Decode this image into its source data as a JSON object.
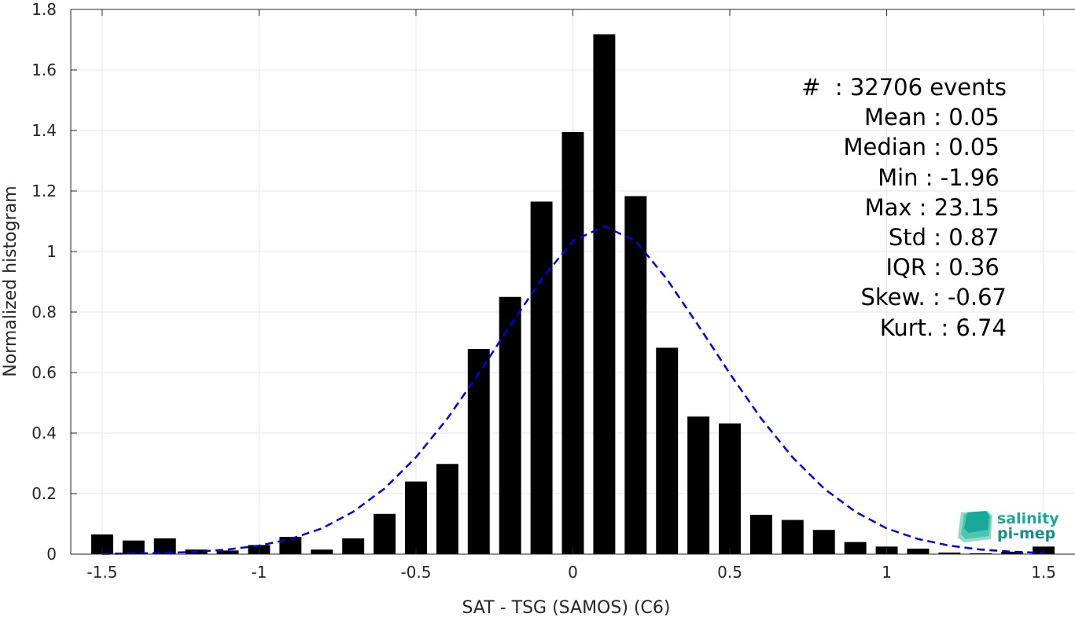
{
  "chart_data": {
    "type": "bar",
    "xlabel": "SAT - TSG (SAMOS) (C6)",
    "ylabel": "Normalized histogram",
    "xlim": [
      -1.6,
      1.6
    ],
    "ylim": [
      0,
      1.8
    ],
    "xticks": [
      -1.5,
      -1,
      -0.5,
      0,
      0.5,
      1,
      1.5
    ],
    "xtick_labels": [
      "-1.5",
      "-1",
      "-0.5",
      "0",
      "0.5",
      "1",
      "1.5"
    ],
    "yticks": [
      0,
      0.2,
      0.4,
      0.6,
      0.8,
      1,
      1.2,
      1.4,
      1.6,
      1.8
    ],
    "ytick_labels": [
      "0",
      "0.2",
      "0.4",
      "0.6",
      "0.8",
      "1",
      "1.2",
      "1.4",
      "1.6",
      "1.8"
    ],
    "grid": true,
    "bar_width": 0.07,
    "bars": {
      "x": [
        -1.5,
        -1.4,
        -1.3,
        -1.2,
        -1.1,
        -1.0,
        -0.9,
        -0.8,
        -0.7,
        -0.6,
        -0.5,
        -0.4,
        -0.3,
        -0.2,
        -0.1,
        0.0,
        0.1,
        0.2,
        0.3,
        0.4,
        0.5,
        0.6,
        0.7,
        0.8,
        0.9,
        1.0,
        1.1,
        1.2,
        1.3,
        1.4,
        1.5
      ],
      "values": [
        0.065,
        0.045,
        0.052,
        0.015,
        0.012,
        0.03,
        0.057,
        0.015,
        0.052,
        0.133,
        0.24,
        0.298,
        0.678,
        0.85,
        1.165,
        1.395,
        1.718,
        1.183,
        0.682,
        0.455,
        0.432,
        0.13,
        0.113,
        0.08,
        0.04,
        0.025,
        0.018,
        0.005,
        0.003,
        0.008,
        0.025
      ],
      "color": "#000000"
    },
    "fit_curve": {
      "style": "dashed",
      "color": "#0000e0",
      "x": [
        -1.5,
        -1.4,
        -1.3,
        -1.2,
        -1.1,
        -1.0,
        -0.9,
        -0.8,
        -0.7,
        -0.6,
        -0.5,
        -0.4,
        -0.3,
        -0.2,
        -0.1,
        0.0,
        0.1,
        0.2,
        0.3,
        0.4,
        0.5,
        0.6,
        0.7,
        0.8,
        0.9,
        1.0,
        1.1,
        1.2,
        1.3,
        1.4,
        1.5
      ],
      "y": [
        0.001,
        0.002,
        0.004,
        0.008,
        0.015,
        0.028,
        0.05,
        0.085,
        0.14,
        0.217,
        0.32,
        0.448,
        0.597,
        0.755,
        0.908,
        1.035,
        1.083,
        1.035,
        0.908,
        0.755,
        0.597,
        0.448,
        0.32,
        0.217,
        0.14,
        0.085,
        0.05,
        0.028,
        0.015,
        0.008,
        0.004
      ]
    }
  },
  "stats": [
    "#  : 32706 events",
    "Mean : 0.05 ",
    "Median : 0.05 ",
    "Min : -1.96 ",
    "Max : 23.15 ",
    "Std : 0.87 ",
    "IQR : 0.36 ",
    "Skew. : -0.67",
    "Kurt. : 6.74"
  ],
  "logo": {
    "line1": "salinity",
    "line2": "pi-mep",
    "icon": "wave-stack-icon",
    "colors": [
      "#1aa89a",
      "#4fc4b0",
      "#8fdcc8"
    ]
  }
}
